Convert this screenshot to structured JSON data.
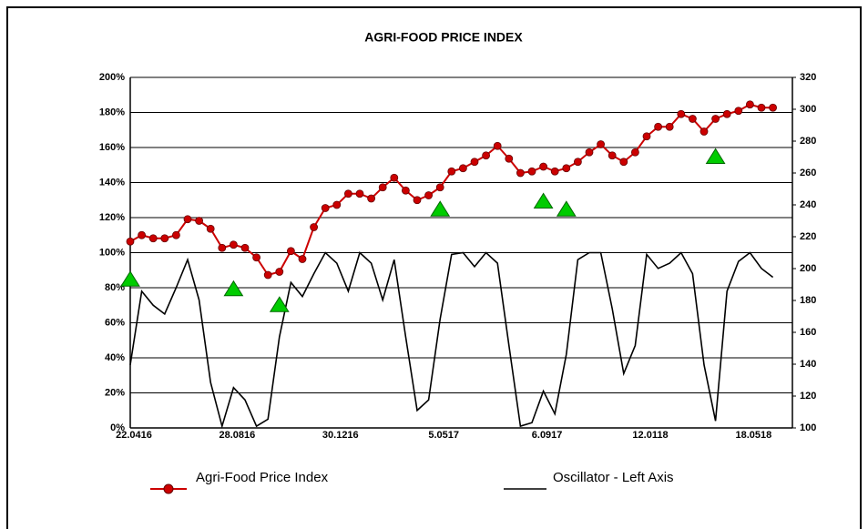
{
  "chart_data": {
    "type": "line",
    "title": "AGRI-FOOD PRICE INDEX",
    "categories": [
      "22.0416",
      null,
      null,
      null,
      null,
      null,
      null,
      null,
      null,
      "28.0816",
      null,
      null,
      null,
      null,
      null,
      null,
      null,
      null,
      "30.1216",
      null,
      null,
      null,
      null,
      null,
      null,
      null,
      null,
      "5.0517",
      null,
      null,
      null,
      null,
      null,
      null,
      null,
      null,
      "6.0917",
      null,
      null,
      null,
      null,
      null,
      null,
      null,
      null,
      "12.0118",
      null,
      null,
      null,
      null,
      null,
      null,
      null,
      null,
      "18.0518",
      null,
      null
    ],
    "ylim": [
      0,
      200
    ],
    "yticks": [
      {
        "value": 0,
        "label": "0%"
      },
      {
        "value": 20,
        "label": "20%"
      },
      {
        "value": 40,
        "label": "40%"
      },
      {
        "value": 60,
        "label": "60%"
      },
      {
        "value": 80,
        "label": "80%"
      },
      {
        "value": 100,
        "label": "100%"
      },
      {
        "value": 120,
        "label": "120%"
      },
      {
        "value": 140,
        "label": "140%"
      },
      {
        "value": 160,
        "label": "160%"
      },
      {
        "value": 180,
        "label": "180%"
      },
      {
        "value": 200,
        "label": "200%"
      }
    ],
    "y2lim": [
      100,
      320
    ],
    "y2ticks": [
      100,
      120,
      140,
      160,
      180,
      200,
      220,
      240,
      260,
      280,
      300,
      320
    ],
    "grid": true,
    "series": [
      {
        "name": "Agri-Food Price Index",
        "color": "#cc0000",
        "axis": "y2",
        "marker": "circle",
        "values": [
          217,
          221,
          219,
          219,
          221,
          231,
          230,
          225,
          213,
          215,
          213,
          207,
          196,
          198,
          211,
          206,
          226,
          238,
          240,
          247,
          247,
          244,
          251,
          257,
          249,
          243,
          246,
          251,
          261,
          263,
          267,
          271,
          277,
          269,
          260,
          261,
          264,
          261,
          263,
          267,
          273,
          278,
          271,
          267,
          273,
          283,
          289,
          289,
          297,
          294,
          286,
          294,
          297,
          299,
          303,
          301,
          301
        ]
      },
      {
        "name": "Oscillator - Left Axis",
        "color": "#000000",
        "marker": "none",
        "values": [
          36,
          78,
          70,
          65,
          80,
          96,
          73,
          26,
          1,
          23,
          16,
          1,
          5,
          52,
          83,
          75,
          88,
          100,
          94,
          78,
          100,
          94,
          73,
          96,
          52,
          10,
          16,
          62,
          99,
          100,
          92,
          100,
          94,
          47,
          1,
          3,
          21,
          8,
          42,
          96,
          100,
          100,
          68,
          31,
          47,
          99,
          91,
          94,
          100,
          88,
          36,
          4,
          78,
          95,
          100,
          91,
          86
        ]
      },
      {
        "color": "#00cc00",
        "axis": "y2",
        "marker": "triangle",
        "values": [
          193,
          null,
          null,
          null,
          null,
          null,
          null,
          null,
          null,
          187,
          null,
          null,
          null,
          177,
          null,
          null,
          null,
          null,
          null,
          null,
          null,
          null,
          null,
          null,
          null,
          null,
          null,
          237,
          null,
          null,
          null,
          null,
          null,
          null,
          null,
          null,
          242,
          null,
          237,
          null,
          null,
          null,
          null,
          null,
          null,
          null,
          null,
          null,
          null,
          null,
          null,
          270,
          null,
          null,
          null,
          null,
          null
        ]
      }
    ]
  }
}
